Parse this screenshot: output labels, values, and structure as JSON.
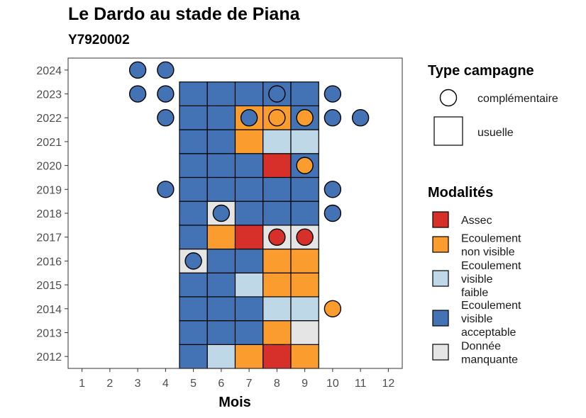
{
  "chart_data": {
    "type": "heatmap",
    "title": "Le Dardo au stade de Piana",
    "subtitle": "Y7920002",
    "xlabel": "Mois",
    "x_ticks": [
      "1",
      "2",
      "3",
      "4",
      "5",
      "6",
      "7",
      "8",
      "9",
      "10",
      "11",
      "12"
    ],
    "y_ticks": [
      "2012",
      "2013",
      "2014",
      "2015",
      "2016",
      "2017",
      "2018",
      "2019",
      "2020",
      "2021",
      "2022",
      "2023",
      "2024"
    ],
    "xlim": [
      0.5,
      12.5
    ],
    "ylim": [
      2011.5,
      2024.5
    ],
    "colors": {
      "Assec": "#d7302a",
      "Ecoulement non visible": "#fb9d2e",
      "Ecoulement visible faible": "#bfd8e8",
      "Ecoulement visible acceptable": "#4373b5",
      "Donnée manquante": "#e5e5e5"
    },
    "usuelle": [
      {
        "year": 2012,
        "month": 5,
        "m": "Ecoulement visible acceptable"
      },
      {
        "year": 2012,
        "month": 6,
        "m": "Ecoulement visible faible"
      },
      {
        "year": 2012,
        "month": 7,
        "m": "Ecoulement non visible"
      },
      {
        "year": 2012,
        "month": 8,
        "m": "Assec"
      },
      {
        "year": 2012,
        "month": 9,
        "m": "Ecoulement non visible"
      },
      {
        "year": 2013,
        "month": 5,
        "m": "Ecoulement visible acceptable"
      },
      {
        "year": 2013,
        "month": 6,
        "m": "Ecoulement visible acceptable"
      },
      {
        "year": 2013,
        "month": 7,
        "m": "Ecoulement visible acceptable"
      },
      {
        "year": 2013,
        "month": 8,
        "m": "Ecoulement non visible"
      },
      {
        "year": 2013,
        "month": 9,
        "m": "Donnée manquante"
      },
      {
        "year": 2014,
        "month": 5,
        "m": "Ecoulement visible acceptable"
      },
      {
        "year": 2014,
        "month": 6,
        "m": "Ecoulement visible acceptable"
      },
      {
        "year": 2014,
        "month": 7,
        "m": "Ecoulement visible acceptable"
      },
      {
        "year": 2014,
        "month": 8,
        "m": "Ecoulement visible faible"
      },
      {
        "year": 2014,
        "month": 9,
        "m": "Ecoulement visible faible"
      },
      {
        "year": 2015,
        "month": 5,
        "m": "Ecoulement visible acceptable"
      },
      {
        "year": 2015,
        "month": 6,
        "m": "Ecoulement visible acceptable"
      },
      {
        "year": 2015,
        "month": 7,
        "m": "Ecoulement visible faible"
      },
      {
        "year": 2015,
        "month": 8,
        "m": "Ecoulement non visible"
      },
      {
        "year": 2015,
        "month": 9,
        "m": "Ecoulement non visible"
      },
      {
        "year": 2016,
        "month": 5,
        "m": "Donnée manquante"
      },
      {
        "year": 2016,
        "month": 6,
        "m": "Ecoulement visible acceptable"
      },
      {
        "year": 2016,
        "month": 7,
        "m": "Ecoulement visible acceptable"
      },
      {
        "year": 2016,
        "month": 8,
        "m": "Ecoulement non visible"
      },
      {
        "year": 2016,
        "month": 9,
        "m": "Ecoulement non visible"
      },
      {
        "year": 2017,
        "month": 5,
        "m": "Ecoulement visible acceptable"
      },
      {
        "year": 2017,
        "month": 6,
        "m": "Ecoulement non visible"
      },
      {
        "year": 2017,
        "month": 7,
        "m": "Assec"
      },
      {
        "year": 2017,
        "month": 8,
        "m": "Donnée manquante"
      },
      {
        "year": 2017,
        "month": 9,
        "m": "Donnée manquante"
      },
      {
        "year": 2018,
        "month": 5,
        "m": "Ecoulement visible acceptable"
      },
      {
        "year": 2018,
        "month": 6,
        "m": "Donnée manquante"
      },
      {
        "year": 2018,
        "month": 7,
        "m": "Ecoulement visible acceptable"
      },
      {
        "year": 2018,
        "month": 8,
        "m": "Ecoulement visible acceptable"
      },
      {
        "year": 2018,
        "month": 9,
        "m": "Ecoulement visible acceptable"
      },
      {
        "year": 2019,
        "month": 5,
        "m": "Ecoulement visible acceptable"
      },
      {
        "year": 2019,
        "month": 6,
        "m": "Ecoulement visible acceptable"
      },
      {
        "year": 2019,
        "month": 7,
        "m": "Ecoulement visible acceptable"
      },
      {
        "year": 2019,
        "month": 8,
        "m": "Ecoulement visible acceptable"
      },
      {
        "year": 2019,
        "month": 9,
        "m": "Ecoulement visible acceptable"
      },
      {
        "year": 2020,
        "month": 5,
        "m": "Ecoulement visible acceptable"
      },
      {
        "year": 2020,
        "month": 6,
        "m": "Ecoulement visible acceptable"
      },
      {
        "year": 2020,
        "month": 7,
        "m": "Ecoulement visible acceptable"
      },
      {
        "year": 2020,
        "month": 8,
        "m": "Assec"
      },
      {
        "year": 2020,
        "month": 9,
        "m": "Ecoulement visible acceptable"
      },
      {
        "year": 2021,
        "month": 5,
        "m": "Ecoulement visible acceptable"
      },
      {
        "year": 2021,
        "month": 6,
        "m": "Ecoulement visible acceptable"
      },
      {
        "year": 2021,
        "month": 7,
        "m": "Ecoulement non visible"
      },
      {
        "year": 2021,
        "month": 8,
        "m": "Ecoulement visible faible"
      },
      {
        "year": 2021,
        "month": 9,
        "m": "Ecoulement visible faible"
      },
      {
        "year": 2022,
        "month": 5,
        "m": "Ecoulement visible acceptable"
      },
      {
        "year": 2022,
        "month": 6,
        "m": "Ecoulement visible acceptable"
      },
      {
        "year": 2022,
        "month": 7,
        "m": "Ecoulement non visible"
      },
      {
        "year": 2022,
        "month": 8,
        "m": "Ecoulement non visible"
      },
      {
        "year": 2022,
        "month": 9,
        "m": "Ecoulement visible acceptable"
      },
      {
        "year": 2023,
        "month": 5,
        "m": "Ecoulement visible acceptable"
      },
      {
        "year": 2023,
        "month": 6,
        "m": "Ecoulement visible acceptable"
      },
      {
        "year": 2023,
        "month": 7,
        "m": "Ecoulement visible acceptable"
      },
      {
        "year": 2023,
        "month": 8,
        "m": "Ecoulement visible acceptable"
      },
      {
        "year": 2023,
        "month": 9,
        "m": "Ecoulement visible acceptable"
      }
    ],
    "complementaire": [
      {
        "year": 2024,
        "month": 3,
        "m": "Ecoulement visible acceptable"
      },
      {
        "year": 2024,
        "month": 4,
        "m": "Ecoulement visible acceptable"
      },
      {
        "year": 2023,
        "month": 3,
        "m": "Ecoulement visible acceptable"
      },
      {
        "year": 2023,
        "month": 4,
        "m": "Ecoulement visible acceptable"
      },
      {
        "year": 2023,
        "month": 8,
        "m": "Ecoulement visible acceptable"
      },
      {
        "year": 2023,
        "month": 10,
        "m": "Ecoulement visible acceptable"
      },
      {
        "year": 2022,
        "month": 4,
        "m": "Ecoulement visible acceptable"
      },
      {
        "year": 2022,
        "month": 7,
        "m": "Ecoulement visible acceptable"
      },
      {
        "year": 2022,
        "month": 8,
        "m": "Ecoulement non visible"
      },
      {
        "year": 2022,
        "month": 9,
        "m": "Ecoulement non visible"
      },
      {
        "year": 2022,
        "month": 10,
        "m": "Ecoulement visible acceptable"
      },
      {
        "year": 2022,
        "month": 11,
        "m": "Ecoulement visible acceptable"
      },
      {
        "year": 2020,
        "month": 9,
        "m": "Ecoulement non visible"
      },
      {
        "year": 2019,
        "month": 4,
        "m": "Ecoulement visible acceptable"
      },
      {
        "year": 2019,
        "month": 10,
        "m": "Ecoulement visible acceptable"
      },
      {
        "year": 2018,
        "month": 6,
        "m": "Ecoulement visible acceptable"
      },
      {
        "year": 2018,
        "month": 10,
        "m": "Ecoulement visible acceptable"
      },
      {
        "year": 2017,
        "month": 8,
        "m": "Assec"
      },
      {
        "year": 2017,
        "month": 9,
        "m": "Assec"
      },
      {
        "year": 2016,
        "month": 5,
        "m": "Ecoulement visible acceptable"
      },
      {
        "year": 2014,
        "month": 10,
        "m": "Ecoulement non visible"
      }
    ],
    "legend_type": {
      "title": "Type campagne",
      "items": [
        {
          "label": "complémentaire",
          "shape": "circle"
        },
        {
          "label": "usuelle",
          "shape": "square"
        }
      ]
    },
    "legend_modalites": {
      "title": "Modalités",
      "items": [
        {
          "key": "Assec",
          "lines": [
            "Assec"
          ]
        },
        {
          "key": "Ecoulement non visible",
          "lines": [
            "Ecoulement",
            "non visible"
          ]
        },
        {
          "key": "Ecoulement visible faible",
          "lines": [
            "Ecoulement",
            "visible",
            "faible"
          ]
        },
        {
          "key": "Ecoulement visible acceptable",
          "lines": [
            "Ecoulement",
            "visible",
            "acceptable"
          ]
        },
        {
          "key": "Donnée manquante",
          "lines": [
            "Donnée",
            "manquante"
          ]
        }
      ]
    }
  }
}
